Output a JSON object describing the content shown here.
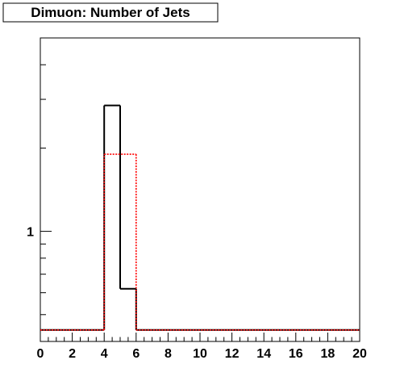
{
  "chart_data": {
    "type": "histogram",
    "title": "Dimuon: Number of Jets",
    "xlabel": "",
    "ylabel": "",
    "xlim": [
      0,
      20
    ],
    "ylim": [
      0.4,
      5
    ],
    "y_scale": "log",
    "x_ticks": [
      "0",
      "2",
      "4",
      "6",
      "8",
      "10",
      "12",
      "14",
      "16",
      "18",
      "20"
    ],
    "y_tick_labels": [
      {
        "value": 1,
        "label": "1"
      }
    ],
    "bin_width": 1,
    "series": [
      {
        "color": "#000000",
        "style": "solid",
        "bins": [
          {
            "x_low": 0,
            "x_high": 4,
            "value": 0.44
          },
          {
            "x_low": 4,
            "x_high": 5,
            "value": 2.85
          },
          {
            "x_low": 5,
            "x_high": 6,
            "value": 0.62
          },
          {
            "x_low": 6,
            "x_high": 20,
            "value": 0.44
          }
        ]
      },
      {
        "color": "#ff0000",
        "style": "dotted",
        "bins": [
          {
            "x_low": 0,
            "x_high": 4,
            "value": 0.44
          },
          {
            "x_low": 4,
            "x_high": 6,
            "value": 1.9
          },
          {
            "x_low": 6,
            "x_high": 20,
            "value": 0.44
          }
        ]
      }
    ],
    "legend": "none",
    "grid": false
  }
}
